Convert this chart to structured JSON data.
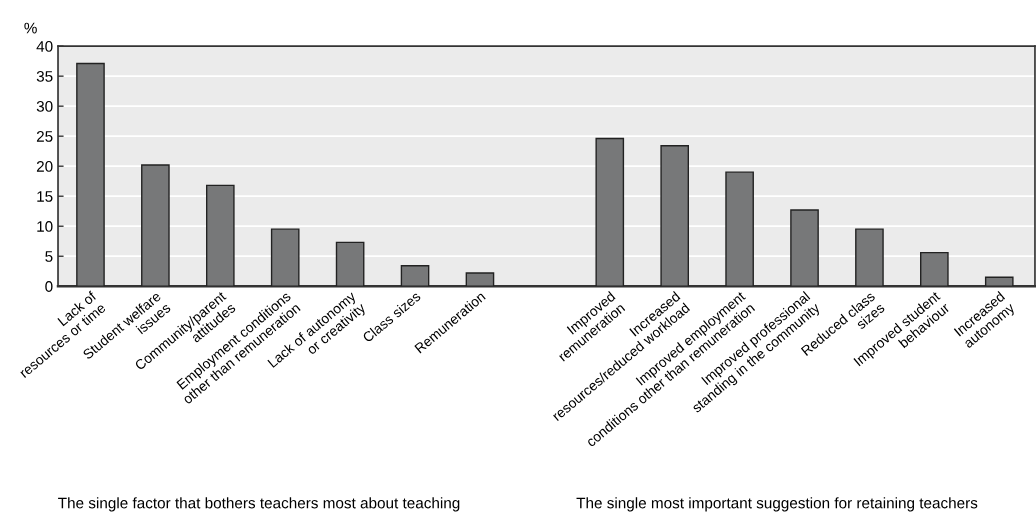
{
  "chart_data": {
    "type": "bar",
    "ylabel": "%",
    "categories": [
      "Lack of\nresources or time",
      "Student welfare\nissues",
      "Community/parent\nattitudes",
      "Employment conditions\nother than remuneration",
      "Lack of autonomy\nor creativity",
      "Class sizes",
      "Remuneration",
      null,
      "Improved\nremuneration",
      "Increased\nresources/reduced workload",
      "Improved employment\nconditions other than remuneration",
      "Improved professional\nstanding in the community",
      "Reduced class\nsizes",
      "Improved student\nbehaviour",
      "Increased\nautonomy"
    ],
    "values": [
      37.1,
      20.2,
      16.8,
      9.5,
      7.3,
      3.4,
      2.2,
      null,
      24.6,
      23.4,
      19.0,
      12.7,
      9.5,
      5.6,
      1.5
    ],
    "color": "#777879",
    "ylim": [
      0,
      40
    ],
    "yticks": [
      0,
      5,
      10,
      15,
      20,
      25,
      30,
      35,
      40
    ],
    "grid": "y",
    "annotations": [
      "The single factor that bothers teachers most about teaching",
      "The single most important suggestion for retaining teachers"
    ]
  }
}
